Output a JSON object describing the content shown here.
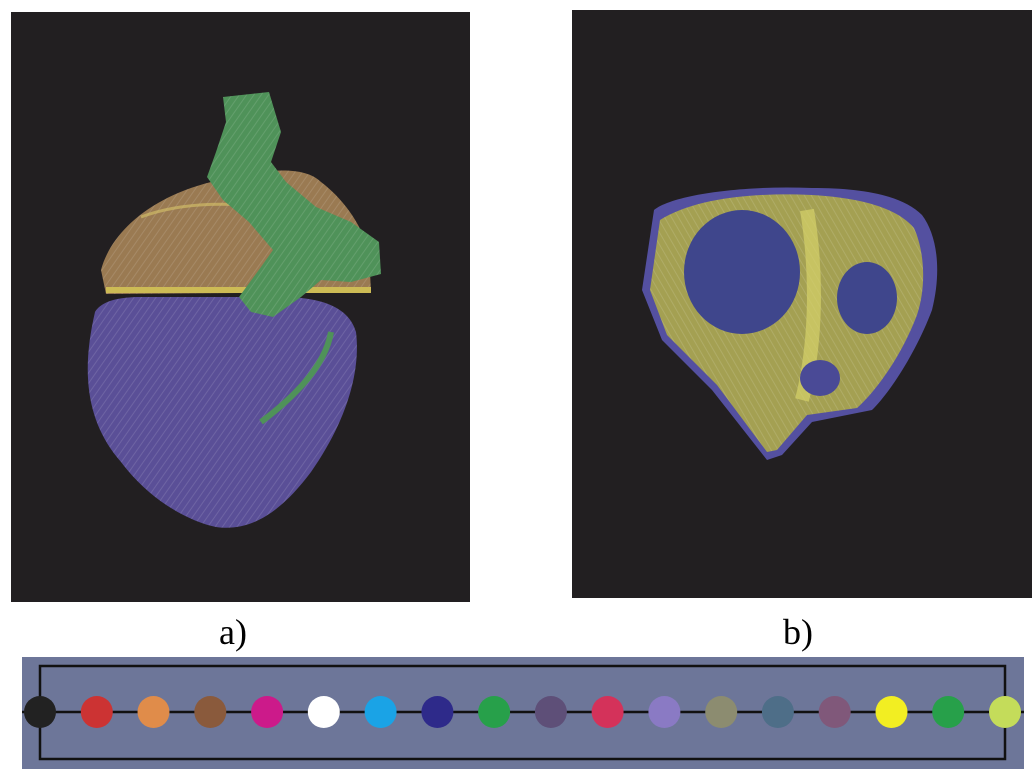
{
  "figure": {
    "panels": [
      {
        "id": "a",
        "caption": "a)",
        "background": "#221f21"
      },
      {
        "id": "b",
        "caption": "b)",
        "background": "#221f21"
      }
    ]
  },
  "palette": {
    "background": "#6d7699",
    "swatches": [
      "#222222",
      "#cc3333",
      "#e08c4a",
      "#8a5a3c",
      "#cc1a8a",
      "#ffffff",
      "#1aa3e6",
      "#2e2a8a",
      "#27a04a",
      "#5e4f78",
      "#d4325a",
      "#8a7ac4",
      "#8c8c70",
      "#4e6e88",
      "#80587a",
      "#f2ee22",
      "#27a04a",
      "#c4dc5a"
    ]
  }
}
